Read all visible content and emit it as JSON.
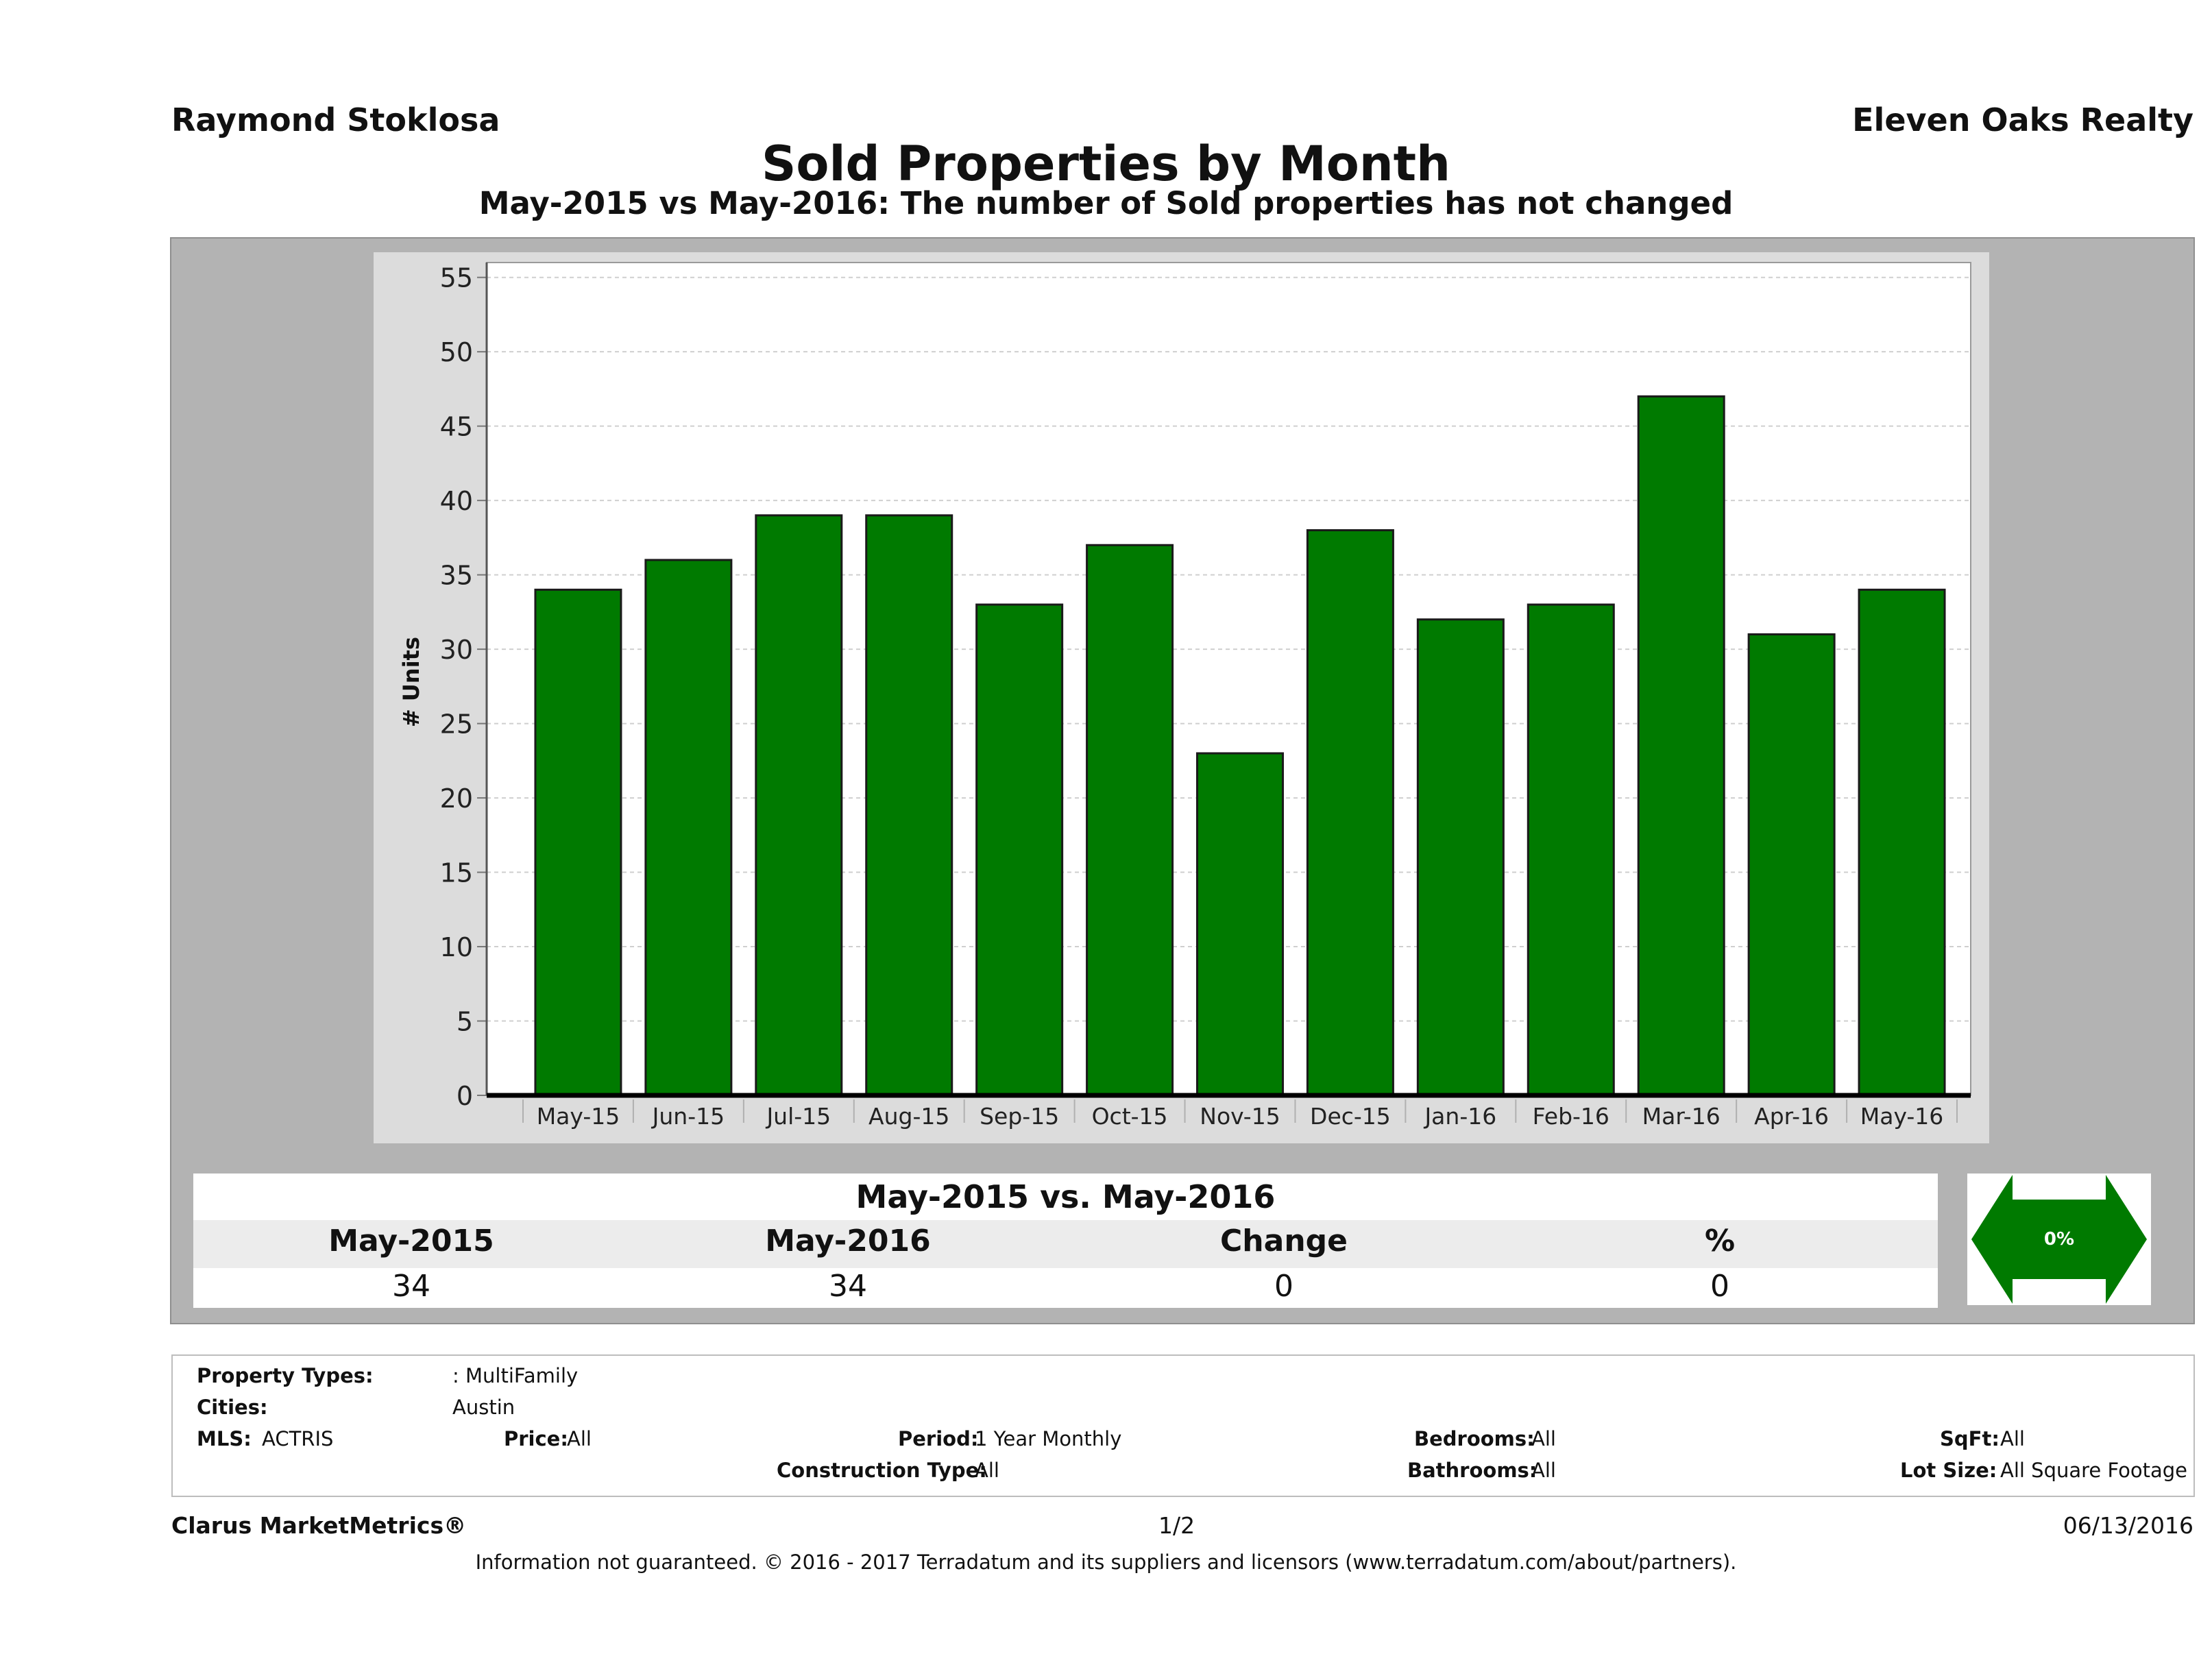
{
  "header": {
    "agent_name": "Raymond Stoklosa",
    "company": "Eleven Oaks Realty",
    "title": "Sold Properties by Month",
    "subtitle": "May-2015 vs May-2016: The number of Sold  properties has not changed"
  },
  "colors": {
    "bar": "#007a00",
    "arrow": "#007a00"
  },
  "chart_data": {
    "type": "bar",
    "categories": [
      "May-15",
      "Jun-15",
      "Jul-15",
      "Aug-15",
      "Sep-15",
      "Oct-15",
      "Nov-15",
      "Dec-15",
      "Jan-16",
      "Feb-16",
      "Mar-16",
      "Apr-16",
      "May-16"
    ],
    "values": [
      34,
      36,
      39,
      39,
      33,
      37,
      23,
      38,
      32,
      33,
      47,
      31,
      34
    ],
    "title": "",
    "xlabel": "",
    "ylabel": "# Units",
    "ylim": [
      0,
      56
    ],
    "yticks": [
      0,
      5,
      10,
      15,
      20,
      25,
      30,
      35,
      40,
      45,
      50,
      55
    ],
    "grid": true
  },
  "comparison": {
    "title": "May-2015 vs. May-2016",
    "headers": [
      "May-2015",
      "May-2016",
      "Change",
      "%"
    ],
    "values": [
      "34",
      "34",
      "0",
      "0"
    ],
    "arrow_label": "0%"
  },
  "info": {
    "property_types_label": "Property Types:",
    "property_types_value": ": MultiFamily",
    "cities_label": "Cities:",
    "cities_value": "Austin",
    "mls_label": "MLS:",
    "mls_value": "ACTRIS",
    "price_label": "Price:",
    "price_value": "All",
    "period_label": "Period:",
    "period_value": "1 Year Monthly",
    "construction_label": "Construction Type:",
    "construction_value": "All",
    "bedrooms_label": "Bedrooms:",
    "bedrooms_value": "All",
    "bathrooms_label": "Bathrooms:",
    "bathrooms_value": "All",
    "sqft_label": "SqFt:",
    "sqft_value": "All",
    "lotsize_label": "Lot Size:",
    "lotsize_value": "All Square Footage"
  },
  "footer": {
    "brand": "Clarus MarketMetrics®",
    "page": "1/2",
    "date": "06/13/2016",
    "disclaimer": "Information not guaranteed. © 2016 - 2017 Terradatum and its suppliers and licensors (www.terradatum.com/about/partners)."
  }
}
